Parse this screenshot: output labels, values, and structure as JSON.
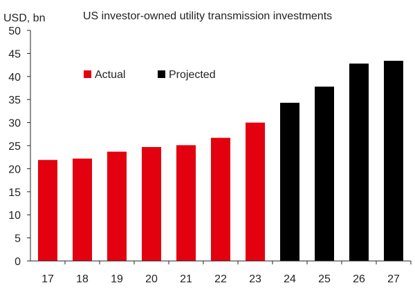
{
  "chart_data": {
    "type": "bar",
    "title": "US investor-owned utility transmission investments",
    "ylabel": "USD, bn",
    "xlabel": "",
    "ylim": [
      0,
      50
    ],
    "yticks": [
      0,
      5,
      10,
      15,
      20,
      25,
      30,
      35,
      40,
      45,
      50
    ],
    "grid": false,
    "legend_position": "top-left",
    "categories": [
      "17",
      "18",
      "19",
      "20",
      "21",
      "22",
      "23",
      "24",
      "25",
      "26",
      "27"
    ],
    "values": [
      21.9,
      22.2,
      23.7,
      24.7,
      25.1,
      26.7,
      30.0,
      34.3,
      37.8,
      42.8,
      43.4
    ],
    "series_assignment": [
      "Actual",
      "Actual",
      "Actual",
      "Actual",
      "Actual",
      "Actual",
      "Actual",
      "Projected",
      "Projected",
      "Projected",
      "Projected"
    ],
    "series": [
      {
        "name": "Actual",
        "color": "#e3000f"
      },
      {
        "name": "Projected",
        "color": "#000000"
      }
    ],
    "axis_color": "#222222"
  }
}
